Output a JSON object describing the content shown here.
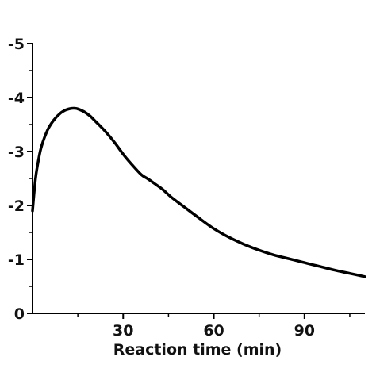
{
  "chart_data": {
    "type": "line",
    "title": "",
    "xlabel": "Reaction time (min)",
    "ylabel": "",
    "xlim": [
      0,
      110
    ],
    "ylim": [
      0,
      -5
    ],
    "y_axis_inverted": true,
    "grid": false,
    "legend": "none",
    "x_ticks": [
      30,
      60,
      90
    ],
    "x_tick_labels": [
      "30",
      "60",
      "90"
    ],
    "y_ticks": [
      0,
      -1,
      -2,
      -3,
      -4,
      -5
    ],
    "y_tick_labels": [
      "0",
      "-1",
      "-2",
      "-3",
      "-4",
      "-5"
    ],
    "line_color": "#000000",
    "series": [
      {
        "x": [
          0,
          1,
          2,
          3,
          5,
          7,
          9,
          11,
          13,
          14,
          15,
          17,
          19,
          21,
          24,
          27,
          30,
          33,
          36,
          38,
          40,
          43,
          46,
          50,
          55,
          60,
          65,
          70,
          75,
          80,
          85,
          90,
          95,
          100,
          105,
          110
        ],
        "values": [
          -1.9,
          -2.5,
          -2.85,
          -3.1,
          -3.4,
          -3.58,
          -3.7,
          -3.77,
          -3.8,
          -3.8,
          -3.79,
          -3.74,
          -3.66,
          -3.55,
          -3.38,
          -3.18,
          -2.95,
          -2.75,
          -2.57,
          -2.5,
          -2.42,
          -2.3,
          -2.15,
          -1.98,
          -1.77,
          -1.57,
          -1.41,
          -1.28,
          -1.17,
          -1.08,
          -1.01,
          -0.94,
          -0.87,
          -0.8,
          -0.74,
          -0.68
        ]
      }
    ]
  }
}
